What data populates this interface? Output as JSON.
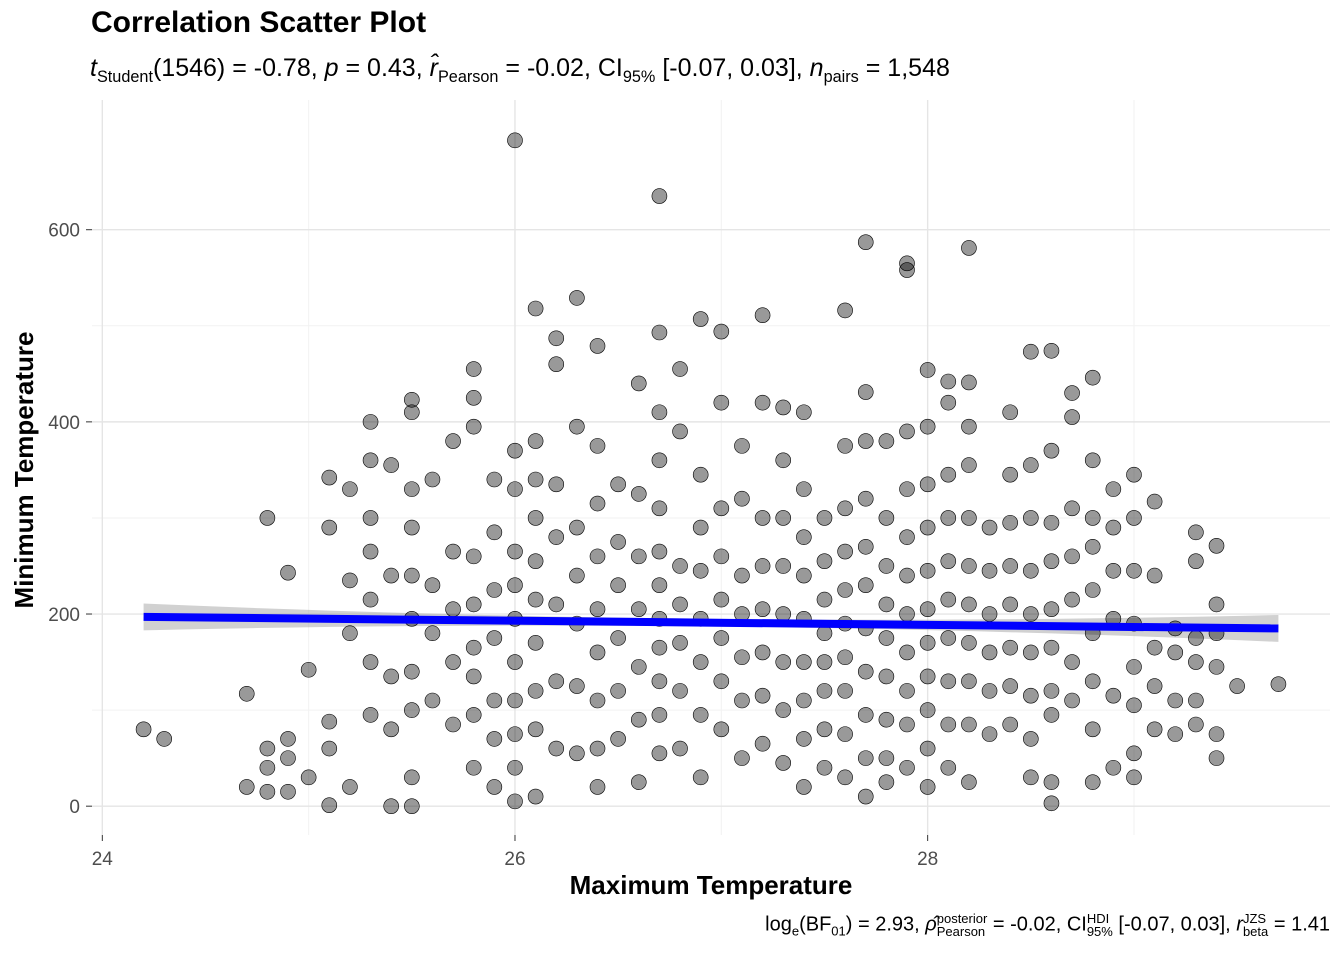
{
  "chart_data": {
    "type": "scatter",
    "title": "Correlation Scatter Plot",
    "subtitle": {
      "t_label": "t",
      "t_sub": "Student",
      "df": "(1546)",
      "t_value": "= -0.78,",
      "p_label": "p",
      "p_value": "= 0.43,",
      "r_label": "r̂",
      "r_sub": "Pearson",
      "r_value": "= -0.02,",
      "ci_label": "CI",
      "ci_sub": "95%",
      "ci_value": "[-0.07, 0.03],",
      "n_label": "n",
      "n_sub": "pairs",
      "n_value": "= 1,548"
    },
    "caption": {
      "log_label": "log",
      "log_sub": "e",
      "bf": "(BF",
      "bf_sub": "01",
      "bf_close": ")",
      "bf_value": "= 2.93,",
      "rho_label": "ρ̂",
      "rho_sup": "posterior",
      "rho_sub": "Pearson",
      "rho_value": "= -0.02,",
      "ci_label": "CI",
      "ci_sup": "HDI",
      "ci_sub": "95%",
      "ci_value": "[-0.07, 0.03],",
      "r_label": "r",
      "r_sup": "JZS",
      "r_sub": "beta",
      "r_value": "= 1.41"
    },
    "xlabel": "Maximum Temperature",
    "ylabel": "Minimum Temperature",
    "xlim": [
      23.95,
      29.95
    ],
    "ylim": [
      -30,
      735
    ],
    "xticks": [
      "24",
      "26",
      "28"
    ],
    "yticks": [
      "0",
      "200",
      "400",
      "600"
    ],
    "grid": true,
    "n_points_total": 1548,
    "point_color": "#000000",
    "point_alpha": 0.4,
    "fit_color": "#0000ff",
    "fit": {
      "x": [
        24.2,
        29.7
      ],
      "y": [
        197,
        185
      ],
      "ci_halfwidth_ends": 14,
      "ci_halfwidth_center": 4
    },
    "points": [
      [
        26.0,
        693
      ],
      [
        26.7,
        635
      ],
      [
        27.7,
        587
      ],
      [
        27.9,
        565
      ],
      [
        27.9,
        558
      ],
      [
        28.2,
        581
      ],
      [
        27.6,
        516
      ],
      [
        27.2,
        511
      ],
      [
        26.1,
        518
      ],
      [
        26.3,
        529
      ],
      [
        26.9,
        507
      ],
      [
        27.0,
        494
      ],
      [
        26.7,
        493
      ],
      [
        26.2,
        487
      ],
      [
        26.4,
        479
      ],
      [
        26.2,
        460
      ],
      [
        28.5,
        473
      ],
      [
        28.6,
        474
      ],
      [
        28.8,
        446
      ],
      [
        28.0,
        454
      ],
      [
        25.8,
        455
      ],
      [
        26.8,
        455
      ],
      [
        27.7,
        431
      ],
      [
        28.1,
        442
      ],
      [
        28.2,
        441
      ],
      [
        25.5,
        423
      ],
      [
        25.3,
        400
      ],
      [
        24.8,
        300
      ],
      [
        24.2,
        80
      ],
      [
        24.3,
        70
      ],
      [
        24.7,
        117
      ],
      [
        24.9,
        243
      ],
      [
        25.0,
        142
      ],
      [
        29.7,
        127
      ],
      [
        29.5,
        125
      ],
      [
        29.4,
        271
      ],
      [
        29.3,
        285
      ],
      [
        29.1,
        317
      ],
      [
        28.6,
        3
      ],
      [
        25.1,
        1
      ],
      [
        25.1,
        342
      ],
      [
        25.2,
        330
      ],
      [
        25.1,
        290
      ],
      [
        25.2,
        235
      ],
      [
        25.2,
        180
      ],
      [
        25.1,
        88
      ],
      [
        25.1,
        60
      ],
      [
        25.2,
        20
      ],
      [
        25.3,
        360
      ],
      [
        25.3,
        300
      ],
      [
        25.3,
        265
      ],
      [
        25.3,
        215
      ],
      [
        25.3,
        150
      ],
      [
        25.3,
        95
      ],
      [
        25.4,
        355
      ],
      [
        25.4,
        240
      ],
      [
        25.4,
        135
      ],
      [
        25.4,
        80
      ],
      [
        25.5,
        410
      ],
      [
        25.5,
        330
      ],
      [
        25.5,
        290
      ],
      [
        25.5,
        240
      ],
      [
        25.5,
        195
      ],
      [
        25.5,
        140
      ],
      [
        25.5,
        100
      ],
      [
        25.5,
        30
      ],
      [
        25.6,
        340
      ],
      [
        25.6,
        230
      ],
      [
        25.6,
        180
      ],
      [
        25.6,
        110
      ],
      [
        25.7,
        380
      ],
      [
        25.7,
        265
      ],
      [
        25.7,
        205
      ],
      [
        25.7,
        150
      ],
      [
        25.7,
        85
      ],
      [
        25.8,
        425
      ],
      [
        25.8,
        395
      ],
      [
        25.8,
        260
      ],
      [
        25.8,
        210
      ],
      [
        25.8,
        165
      ],
      [
        25.8,
        135
      ],
      [
        25.8,
        40
      ],
      [
        25.9,
        340
      ],
      [
        25.9,
        285
      ],
      [
        25.9,
        225
      ],
      [
        25.9,
        175
      ],
      [
        25.9,
        110
      ],
      [
        25.9,
        70
      ],
      [
        25.9,
        20
      ],
      [
        26.0,
        370
      ],
      [
        26.0,
        330
      ],
      [
        26.0,
        265
      ],
      [
        26.0,
        230
      ],
      [
        26.0,
        195
      ],
      [
        26.0,
        150
      ],
      [
        26.0,
        110
      ],
      [
        26.0,
        75
      ],
      [
        26.0,
        40
      ],
      [
        26.1,
        380
      ],
      [
        26.1,
        340
      ],
      [
        26.1,
        300
      ],
      [
        26.1,
        255
      ],
      [
        26.1,
        215
      ],
      [
        26.1,
        170
      ],
      [
        26.1,
        120
      ],
      [
        26.1,
        80
      ],
      [
        26.1,
        10
      ],
      [
        26.2,
        335
      ],
      [
        26.2,
        280
      ],
      [
        26.2,
        210
      ],
      [
        26.2,
        130
      ],
      [
        26.2,
        60
      ],
      [
        26.3,
        395
      ],
      [
        26.3,
        290
      ],
      [
        26.3,
        240
      ],
      [
        26.3,
        190
      ],
      [
        26.3,
        125
      ],
      [
        26.3,
        55
      ],
      [
        26.4,
        375
      ],
      [
        26.4,
        315
      ],
      [
        26.4,
        260
      ],
      [
        26.4,
        205
      ],
      [
        26.4,
        160
      ],
      [
        26.4,
        110
      ],
      [
        26.4,
        60
      ],
      [
        26.4,
        20
      ],
      [
        26.5,
        335
      ],
      [
        26.5,
        275
      ],
      [
        26.5,
        230
      ],
      [
        26.5,
        175
      ],
      [
        26.5,
        120
      ],
      [
        26.5,
        70
      ],
      [
        26.6,
        440
      ],
      [
        26.6,
        325
      ],
      [
        26.6,
        260
      ],
      [
        26.6,
        205
      ],
      [
        26.6,
        145
      ],
      [
        26.6,
        90
      ],
      [
        26.6,
        25
      ],
      [
        26.7,
        410
      ],
      [
        26.7,
        360
      ],
      [
        26.7,
        310
      ],
      [
        26.7,
        265
      ],
      [
        26.7,
        230
      ],
      [
        26.7,
        195
      ],
      [
        26.7,
        165
      ],
      [
        26.7,
        130
      ],
      [
        26.7,
        95
      ],
      [
        26.7,
        55
      ],
      [
        26.8,
        390
      ],
      [
        26.8,
        250
      ],
      [
        26.8,
        210
      ],
      [
        26.8,
        170
      ],
      [
        26.8,
        120
      ],
      [
        26.8,
        60
      ],
      [
        26.9,
        345
      ],
      [
        26.9,
        290
      ],
      [
        26.9,
        245
      ],
      [
        26.9,
        195
      ],
      [
        26.9,
        150
      ],
      [
        26.9,
        95
      ],
      [
        26.9,
        30
      ],
      [
        27.0,
        420
      ],
      [
        27.0,
        310
      ],
      [
        27.0,
        260
      ],
      [
        27.0,
        215
      ],
      [
        27.0,
        175
      ],
      [
        27.0,
        130
      ],
      [
        27.0,
        80
      ],
      [
        27.1,
        375
      ],
      [
        27.1,
        320
      ],
      [
        27.1,
        240
      ],
      [
        27.1,
        200
      ],
      [
        27.1,
        155
      ],
      [
        27.1,
        110
      ],
      [
        27.1,
        50
      ],
      [
        27.2,
        420
      ],
      [
        27.2,
        300
      ],
      [
        27.2,
        250
      ],
      [
        27.2,
        205
      ],
      [
        27.2,
        160
      ],
      [
        27.2,
        115
      ],
      [
        27.2,
        65
      ],
      [
        27.3,
        415
      ],
      [
        27.3,
        360
      ],
      [
        27.3,
        300
      ],
      [
        27.3,
        250
      ],
      [
        27.3,
        200
      ],
      [
        27.3,
        150
      ],
      [
        27.3,
        100
      ],
      [
        27.3,
        45
      ],
      [
        27.4,
        410
      ],
      [
        27.4,
        330
      ],
      [
        27.4,
        280
      ],
      [
        27.4,
        240
      ],
      [
        27.4,
        195
      ],
      [
        27.4,
        150
      ],
      [
        27.4,
        110
      ],
      [
        27.4,
        70
      ],
      [
        27.4,
        20
      ],
      [
        27.5,
        300
      ],
      [
        27.5,
        255
      ],
      [
        27.5,
        215
      ],
      [
        27.5,
        180
      ],
      [
        27.5,
        150
      ],
      [
        27.5,
        120
      ],
      [
        27.5,
        80
      ],
      [
        27.5,
        40
      ],
      [
        27.6,
        375
      ],
      [
        27.6,
        310
      ],
      [
        27.6,
        265
      ],
      [
        27.6,
        225
      ],
      [
        27.6,
        190
      ],
      [
        27.6,
        155
      ],
      [
        27.6,
        120
      ],
      [
        27.6,
        75
      ],
      [
        27.6,
        30
      ],
      [
        27.7,
        380
      ],
      [
        27.7,
        320
      ],
      [
        27.7,
        270
      ],
      [
        27.7,
        230
      ],
      [
        27.7,
        185
      ],
      [
        27.7,
        140
      ],
      [
        27.7,
        95
      ],
      [
        27.7,
        50
      ],
      [
        27.7,
        10
      ],
      [
        27.8,
        380
      ],
      [
        27.8,
        300
      ],
      [
        27.8,
        250
      ],
      [
        27.8,
        210
      ],
      [
        27.8,
        175
      ],
      [
        27.8,
        135
      ],
      [
        27.8,
        90
      ],
      [
        27.8,
        50
      ],
      [
        27.8,
        25
      ],
      [
        27.9,
        390
      ],
      [
        27.9,
        330
      ],
      [
        27.9,
        280
      ],
      [
        27.9,
        240
      ],
      [
        27.9,
        200
      ],
      [
        27.9,
        160
      ],
      [
        27.9,
        120
      ],
      [
        27.9,
        85
      ],
      [
        27.9,
        40
      ],
      [
        28.0,
        395
      ],
      [
        28.0,
        335
      ],
      [
        28.0,
        290
      ],
      [
        28.0,
        245
      ],
      [
        28.0,
        205
      ],
      [
        28.0,
        170
      ],
      [
        28.0,
        135
      ],
      [
        28.0,
        100
      ],
      [
        28.0,
        60
      ],
      [
        28.0,
        20
      ],
      [
        28.1,
        420
      ],
      [
        28.1,
        345
      ],
      [
        28.1,
        300
      ],
      [
        28.1,
        255
      ],
      [
        28.1,
        215
      ],
      [
        28.1,
        175
      ],
      [
        28.1,
        130
      ],
      [
        28.1,
        85
      ],
      [
        28.1,
        40
      ],
      [
        28.2,
        395
      ],
      [
        28.2,
        355
      ],
      [
        28.2,
        300
      ],
      [
        28.2,
        250
      ],
      [
        28.2,
        210
      ],
      [
        28.2,
        170
      ],
      [
        28.2,
        130
      ],
      [
        28.2,
        85
      ],
      [
        28.2,
        25
      ],
      [
        28.3,
        290
      ],
      [
        28.3,
        245
      ],
      [
        28.3,
        200
      ],
      [
        28.3,
        160
      ],
      [
        28.3,
        120
      ],
      [
        28.3,
        75
      ],
      [
        28.4,
        410
      ],
      [
        28.4,
        345
      ],
      [
        28.4,
        295
      ],
      [
        28.4,
        250
      ],
      [
        28.4,
        210
      ],
      [
        28.4,
        165
      ],
      [
        28.4,
        125
      ],
      [
        28.4,
        85
      ],
      [
        28.5,
        355
      ],
      [
        28.5,
        300
      ],
      [
        28.5,
        245
      ],
      [
        28.5,
        200
      ],
      [
        28.5,
        160
      ],
      [
        28.5,
        115
      ],
      [
        28.5,
        70
      ],
      [
        28.5,
        30
      ],
      [
        28.6,
        370
      ],
      [
        28.6,
        295
      ],
      [
        28.6,
        255
      ],
      [
        28.6,
        205
      ],
      [
        28.6,
        165
      ],
      [
        28.6,
        120
      ],
      [
        28.6,
        95
      ],
      [
        28.6,
        25
      ],
      [
        28.7,
        430
      ],
      [
        28.7,
        405
      ],
      [
        28.7,
        310
      ],
      [
        28.7,
        260
      ],
      [
        28.7,
        215
      ],
      [
        28.7,
        150
      ],
      [
        28.7,
        110
      ],
      [
        28.8,
        360
      ],
      [
        28.8,
        300
      ],
      [
        28.8,
        270
      ],
      [
        28.8,
        225
      ],
      [
        28.8,
        180
      ],
      [
        28.8,
        130
      ],
      [
        28.8,
        80
      ],
      [
        28.8,
        25
      ],
      [
        28.9,
        330
      ],
      [
        28.9,
        290
      ],
      [
        28.9,
        245
      ],
      [
        28.9,
        195
      ],
      [
        28.9,
        115
      ],
      [
        28.9,
        40
      ],
      [
        29.0,
        345
      ],
      [
        29.0,
        300
      ],
      [
        29.0,
        245
      ],
      [
        29.0,
        190
      ],
      [
        29.0,
        145
      ],
      [
        29.0,
        105
      ],
      [
        29.0,
        55
      ],
      [
        29.0,
        30
      ],
      [
        29.1,
        240
      ],
      [
        29.1,
        165
      ],
      [
        29.1,
        125
      ],
      [
        29.1,
        80
      ],
      [
        29.2,
        185
      ],
      [
        29.2,
        160
      ],
      [
        29.2,
        110
      ],
      [
        29.2,
        75
      ],
      [
        29.3,
        255
      ],
      [
        29.3,
        175
      ],
      [
        29.3,
        150
      ],
      [
        29.3,
        110
      ],
      [
        29.3,
        85
      ],
      [
        29.4,
        210
      ],
      [
        29.4,
        180
      ],
      [
        29.4,
        145
      ],
      [
        29.4,
        75
      ],
      [
        29.4,
        50
      ],
      [
        24.8,
        60
      ],
      [
        24.8,
        40
      ],
      [
        24.8,
        15
      ],
      [
        24.7,
        20
      ],
      [
        24.9,
        70
      ],
      [
        24.9,
        50
      ],
      [
        24.9,
        15
      ],
      [
        25.0,
        30
      ],
      [
        25.4,
        0
      ],
      [
        25.5,
        0
      ],
      [
        25.8,
        95
      ],
      [
        26.0,
        5
      ]
    ]
  }
}
